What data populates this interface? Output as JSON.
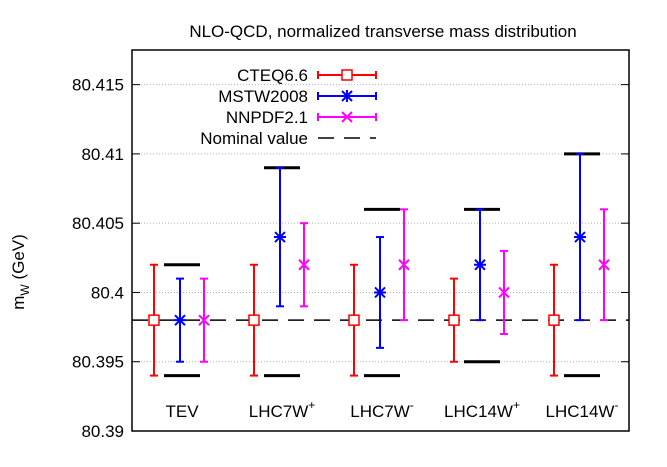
{
  "chart_data": {
    "type": "scatter",
    "title": "NLO-QCD, normalized transverse mass distribution",
    "ylabel": {
      "main": "m",
      "sub": "W",
      "unit": " (GeV)"
    },
    "ylim": [
      80.39,
      80.4175
    ],
    "yticks": [
      80.39,
      80.395,
      80.4,
      80.405,
      80.41,
      80.415
    ],
    "ytick_labels": [
      "80.39",
      "80.395",
      "80.4",
      "80.405",
      "80.41",
      "80.415"
    ],
    "grid": true,
    "legend_position": "top-left",
    "nominal_value": 80.398,
    "categories": [
      {
        "base": "TEV",
        "sup": ""
      },
      {
        "base": "LHC7W",
        "sup": "+"
      },
      {
        "base": "LHC7W",
        "sup": "-"
      },
      {
        "base": "LHC14W",
        "sup": "+"
      },
      {
        "base": "LHC14W",
        "sup": "-"
      }
    ],
    "envelope": [
      {
        "low": 80.394,
        "high": 80.402
      },
      {
        "low": 80.394,
        "high": 80.409
      },
      {
        "low": 80.394,
        "high": 80.406
      },
      {
        "low": 80.395,
        "high": 80.406
      },
      {
        "low": 80.394,
        "high": 80.41
      }
    ],
    "series": [
      {
        "name": "CTEQ6.6",
        "color": "#ff0000",
        "marker": "open-square",
        "points": [
          {
            "y": 80.398,
            "low": 80.394,
            "high": 80.402
          },
          {
            "y": 80.398,
            "low": 80.394,
            "high": 80.402
          },
          {
            "y": 80.398,
            "low": 80.394,
            "high": 80.402
          },
          {
            "y": 80.398,
            "low": 80.395,
            "high": 80.401
          },
          {
            "y": 80.398,
            "low": 80.394,
            "high": 80.402
          }
        ]
      },
      {
        "name": "MSTW2008",
        "color": "#0000ff",
        "marker": "star",
        "points": [
          {
            "y": 80.398,
            "low": 80.395,
            "high": 80.401
          },
          {
            "y": 80.404,
            "low": 80.399,
            "high": 80.409
          },
          {
            "y": 80.4,
            "low": 80.396,
            "high": 80.404
          },
          {
            "y": 80.402,
            "low": 80.398,
            "high": 80.406
          },
          {
            "y": 80.404,
            "low": 80.398,
            "high": 80.41
          }
        ]
      },
      {
        "name": "NNPDF2.1",
        "color": "#ff00ff",
        "marker": "cross",
        "points": [
          {
            "y": 80.398,
            "low": 80.395,
            "high": 80.401
          },
          {
            "y": 80.402,
            "low": 80.399,
            "high": 80.405
          },
          {
            "y": 80.402,
            "low": 80.398,
            "high": 80.406
          },
          {
            "y": 80.4,
            "low": 80.397,
            "high": 80.403
          },
          {
            "y": 80.402,
            "low": 80.398,
            "high": 80.406
          }
        ]
      }
    ],
    "nominal_label": "Nominal value"
  }
}
